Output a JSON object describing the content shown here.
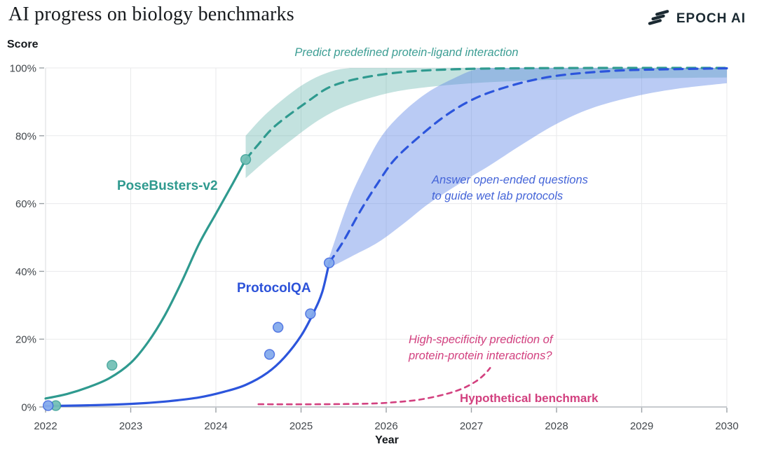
{
  "header": {
    "title": "AI progress on biology benchmarks",
    "brand": "EPOCH AI"
  },
  "chart_data": {
    "type": "line",
    "title": "AI progress on biology benchmarks",
    "xlabel": "Year",
    "ylabel": "Score",
    "xlim": [
      2022,
      2030
    ],
    "ylim": [
      0,
      100
    ],
    "grid": true,
    "legend_position": "inline-labels",
    "x_ticks": [
      2022,
      2023,
      2024,
      2025,
      2026,
      2027,
      2028,
      2029,
      2030
    ],
    "y_ticks": [
      {
        "value": 0,
        "label": "0%"
      },
      {
        "value": 20,
        "label": "20%"
      },
      {
        "value": 40,
        "label": "40%"
      },
      {
        "value": 60,
        "label": "60%"
      },
      {
        "value": 80,
        "label": "80%"
      },
      {
        "value": 100,
        "label": "100%"
      }
    ],
    "series": [
      {
        "id": "posebusters-v2",
        "name": "PoseBusters-v2",
        "annotation": "Predict predefined protein-ligand interaction",
        "color": "#2f9a8f",
        "point_fill": "#74c0b6",
        "band_color": "#49a89d",
        "band_opacity": 0.33,
        "observed": [
          [
            2022.12,
            0.4
          ],
          [
            2022.78,
            12.3
          ],
          [
            2024.35,
            73
          ]
        ],
        "fit_solid": [
          [
            2022,
            2.5
          ],
          [
            2022.25,
            3.8
          ],
          [
            2022.5,
            5.8
          ],
          [
            2022.75,
            8.5
          ],
          [
            2023,
            13
          ],
          [
            2023.2,
            19
          ],
          [
            2023.4,
            27
          ],
          [
            2023.6,
            37
          ],
          [
            2023.8,
            48
          ],
          [
            2024,
            57
          ],
          [
            2024.2,
            66
          ],
          [
            2024.35,
            73
          ]
        ],
        "fit_dashed": [
          [
            2024.35,
            73
          ],
          [
            2024.5,
            77.5
          ],
          [
            2024.7,
            83
          ],
          [
            2025.1,
            90.5
          ],
          [
            2025.35,
            94.5
          ],
          [
            2025.7,
            97
          ],
          [
            2026.2,
            98.8
          ],
          [
            2026.8,
            99.6
          ],
          [
            2027.5,
            99.9
          ],
          [
            2028.5,
            100
          ],
          [
            2030,
            100
          ]
        ],
        "band_upper": [
          [
            2024.35,
            80
          ],
          [
            2024.55,
            85.5
          ],
          [
            2024.8,
            91
          ],
          [
            2025.05,
            95.5
          ],
          [
            2025.3,
            98.5
          ],
          [
            2025.55,
            99.9
          ],
          [
            2026,
            100
          ],
          [
            2030,
            100
          ]
        ],
        "band_lower": [
          [
            2024.35,
            67.5
          ],
          [
            2024.6,
            73
          ],
          [
            2024.9,
            79
          ],
          [
            2025.2,
            84.5
          ],
          [
            2025.5,
            88.5
          ],
          [
            2025.9,
            91.8
          ],
          [
            2026.3,
            93.8
          ],
          [
            2026.9,
            95.3
          ],
          [
            2027.6,
            96.2
          ],
          [
            2028.5,
            96.8
          ],
          [
            2030,
            97.2
          ]
        ]
      },
      {
        "id": "protocolqa",
        "name": "ProtocolQA",
        "annotation": "Answer open-ended questions\nto guide wet lab protocols",
        "color": "#2c55dc",
        "point_fill": "#85abec",
        "band_color": "#5b84e4",
        "band_opacity": 0.42,
        "observed": [
          [
            2022.03,
            0.4
          ],
          [
            2024.63,
            15.5
          ],
          [
            2024.73,
            23.5
          ],
          [
            2025.11,
            27.5
          ],
          [
            2025.33,
            42.5
          ]
        ],
        "fit_solid": [
          [
            2022,
            0.3
          ],
          [
            2022.5,
            0.5
          ],
          [
            2023,
            0.9
          ],
          [
            2023.4,
            1.6
          ],
          [
            2023.8,
            2.8
          ],
          [
            2024.1,
            4.5
          ],
          [
            2024.35,
            6.5
          ],
          [
            2024.6,
            10
          ],
          [
            2024.8,
            14.5
          ],
          [
            2025,
            21
          ],
          [
            2025.15,
            28
          ],
          [
            2025.25,
            34
          ],
          [
            2025.33,
            42.5
          ]
        ],
        "fit_dashed": [
          [
            2025.33,
            42.5
          ],
          [
            2025.5,
            49
          ],
          [
            2025.7,
            58
          ],
          [
            2025.9,
            66
          ],
          [
            2026.1,
            73
          ],
          [
            2026.4,
            80
          ],
          [
            2026.7,
            86
          ],
          [
            2027,
            90.5
          ],
          [
            2027.3,
            93.5
          ],
          [
            2027.7,
            96.3
          ],
          [
            2028.1,
            98
          ],
          [
            2028.7,
            99.2
          ],
          [
            2029.3,
            99.6
          ],
          [
            2030,
            99.9
          ]
        ],
        "band_upper": [
          [
            2025.33,
            44
          ],
          [
            2025.55,
            60
          ],
          [
            2025.75,
            71
          ],
          [
            2025.95,
            80
          ],
          [
            2026.2,
            87
          ],
          [
            2026.5,
            93
          ],
          [
            2026.8,
            97
          ],
          [
            2027.05,
            99.5
          ],
          [
            2027.35,
            100
          ],
          [
            2030,
            100
          ]
        ],
        "band_lower": [
          [
            2025.33,
            41
          ],
          [
            2025.6,
            44.5
          ],
          [
            2025.9,
            48.5
          ],
          [
            2026.2,
            54
          ],
          [
            2026.5,
            60
          ],
          [
            2026.9,
            66.5
          ],
          [
            2027.2,
            71
          ],
          [
            2027.6,
            77.5
          ],
          [
            2028,
            83.5
          ],
          [
            2028.4,
            88
          ],
          [
            2028.9,
            91.5
          ],
          [
            2029.4,
            93.8
          ],
          [
            2030,
            95.5
          ]
        ]
      },
      {
        "id": "hypothetical-benchmark",
        "name": "Hypothetical benchmark",
        "annotation": "High-specificity prediction of\nprotein-protein interactions?",
        "color": "#d2407f",
        "fit_dashed": [
          [
            2024.5,
            0.8
          ],
          [
            2025.2,
            0.8
          ],
          [
            2025.8,
            1.0
          ],
          [
            2026.1,
            1.4
          ],
          [
            2026.4,
            2.2
          ],
          [
            2026.7,
            3.8
          ],
          [
            2026.9,
            5.5
          ],
          [
            2027.05,
            7.5
          ],
          [
            2027.15,
            9.5
          ],
          [
            2027.22,
            11.5
          ]
        ]
      }
    ]
  }
}
